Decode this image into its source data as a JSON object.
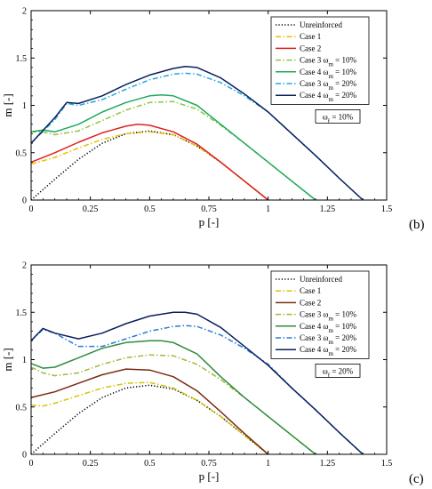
{
  "chart_data": [
    {
      "type": "line",
      "panel_tag": "(b)",
      "xlabel": "p [-]",
      "ylabel": "m [-]",
      "xlim": [
        0,
        1.5
      ],
      "ylim": [
        0,
        2
      ],
      "xticks": [
        "0",
        "0.25",
        "0.5",
        "0.75",
        "1",
        "1.25",
        "1.5"
      ],
      "yticks": [
        "0",
        "0.5",
        "1",
        "1.5",
        "2"
      ],
      "legend_position": "top-right",
      "annotation": "ω_f = 10%",
      "series": [
        {
          "name": "Unreinforced",
          "color": "#000000",
          "dash": "dotted",
          "x": [
            0,
            0.1,
            0.2,
            0.3,
            0.4,
            0.5,
            0.6,
            0.7,
            0.8,
            0.9,
            1.0
          ],
          "y": [
            0,
            0.22,
            0.43,
            0.6,
            0.7,
            0.73,
            0.69,
            0.57,
            0.4,
            0.2,
            0
          ]
        },
        {
          "name": "Case 1",
          "color": "#E8C000",
          "dash": "dashdot",
          "x": [
            0,
            0.1,
            0.2,
            0.3,
            0.4,
            0.5,
            0.6,
            0.7,
            0.8,
            0.9,
            1.0
          ],
          "y": [
            0.38,
            0.45,
            0.55,
            0.64,
            0.7,
            0.72,
            0.69,
            0.57,
            0.4,
            0.2,
            0
          ]
        },
        {
          "name": "Case 2",
          "color": "#E02020",
          "dash": "solid",
          "x": [
            0,
            0.1,
            0.2,
            0.3,
            0.4,
            0.45,
            0.5,
            0.6,
            0.7,
            0.8,
            0.9,
            1.0
          ],
          "y": [
            0.4,
            0.5,
            0.61,
            0.71,
            0.78,
            0.8,
            0.79,
            0.72,
            0.59,
            0.4,
            0.2,
            0
          ]
        },
        {
          "name": "Case 3 ω_m = 10%",
          "color": "#8CC63F",
          "dash": "dashdot",
          "x": [
            0,
            0.05,
            0.1,
            0.2,
            0.3,
            0.4,
            0.5,
            0.6,
            0.7,
            0.8,
            0.9,
            1.0,
            1.1,
            1.2
          ],
          "y": [
            0.72,
            0.72,
            0.69,
            0.73,
            0.84,
            0.95,
            1.03,
            1.04,
            0.96,
            0.79,
            0.6,
            0.4,
            0.2,
            0
          ]
        },
        {
          "name": "Case 4 ω_m = 10%",
          "color": "#1EAA5A",
          "dash": "solid",
          "x": [
            0,
            0.05,
            0.1,
            0.2,
            0.3,
            0.4,
            0.5,
            0.55,
            0.6,
            0.7,
            0.8,
            0.9,
            1.0,
            1.1,
            1.2
          ],
          "y": [
            0.72,
            0.74,
            0.72,
            0.8,
            0.93,
            1.03,
            1.1,
            1.11,
            1.1,
            1.0,
            0.8,
            0.6,
            0.4,
            0.2,
            0
          ]
        },
        {
          "name": "Case 3 ω_m = 20%",
          "color": "#22AADD",
          "dash": "dashdot",
          "x": [
            0,
            0.1,
            0.15,
            0.2,
            0.3,
            0.4,
            0.5,
            0.6,
            0.65,
            0.7,
            0.8,
            0.9,
            1.0,
            1.1,
            1.2,
            1.3,
            1.4
          ],
          "y": [
            0.6,
            0.85,
            1.02,
            1.0,
            1.06,
            1.17,
            1.27,
            1.33,
            1.34,
            1.33,
            1.24,
            1.1,
            0.93,
            0.7,
            0.47,
            0.23,
            0
          ]
        },
        {
          "name": "Case 4 ω_m = 20%",
          "color": "#0A1F5C",
          "dash": "solid",
          "x": [
            0,
            0.1,
            0.15,
            0.2,
            0.3,
            0.4,
            0.5,
            0.6,
            0.65,
            0.7,
            0.8,
            0.9,
            1.0,
            1.1,
            1.2,
            1.3,
            1.4
          ],
          "y": [
            0.6,
            0.87,
            1.03,
            1.02,
            1.1,
            1.22,
            1.32,
            1.39,
            1.41,
            1.4,
            1.29,
            1.12,
            0.93,
            0.7,
            0.47,
            0.23,
            0
          ]
        }
      ]
    },
    {
      "type": "line",
      "panel_tag": "(c)",
      "xlabel": "p [-]",
      "ylabel": "m [-]",
      "xlim": [
        0,
        1.5
      ],
      "ylim": [
        0,
        2
      ],
      "xticks": [
        "0",
        "0.25",
        "0.5",
        "0.75",
        "1",
        "1.25",
        "1.5"
      ],
      "yticks": [
        "0",
        "0.5",
        "1",
        "1.5",
        "2"
      ],
      "legend_position": "top-right",
      "annotation": "ω_f = 20%",
      "series": [
        {
          "name": "Unreinforced",
          "color": "#000000",
          "dash": "dotted",
          "x": [
            0,
            0.1,
            0.2,
            0.3,
            0.4,
            0.5,
            0.6,
            0.7,
            0.8,
            0.9,
            1.0
          ],
          "y": [
            0,
            0.22,
            0.43,
            0.6,
            0.7,
            0.73,
            0.69,
            0.57,
            0.4,
            0.2,
            0
          ]
        },
        {
          "name": "Case 1",
          "color": "#D4C400",
          "dash": "dashdot",
          "x": [
            0,
            0.05,
            0.1,
            0.2,
            0.3,
            0.4,
            0.5,
            0.6,
            0.7,
            0.8,
            0.9,
            1.0
          ],
          "y": [
            0.52,
            0.51,
            0.54,
            0.62,
            0.7,
            0.75,
            0.76,
            0.7,
            0.57,
            0.4,
            0.2,
            0
          ]
        },
        {
          "name": "Case 2",
          "color": "#7A2A10",
          "dash": "solid",
          "x": [
            0,
            0.1,
            0.2,
            0.3,
            0.4,
            0.5,
            0.6,
            0.7,
            0.8,
            0.9,
            1.0
          ],
          "y": [
            0.6,
            0.66,
            0.75,
            0.84,
            0.9,
            0.89,
            0.82,
            0.67,
            0.45,
            0.22,
            0
          ]
        },
        {
          "name": "Case 3 ω_m = 10%",
          "color": "#A2B838",
          "dash": "dashdot",
          "x": [
            0,
            0.05,
            0.1,
            0.2,
            0.3,
            0.4,
            0.5,
            0.6,
            0.7,
            0.8,
            0.9,
            1.0,
            1.1,
            1.2
          ],
          "y": [
            0.92,
            0.86,
            0.83,
            0.86,
            0.95,
            1.02,
            1.05,
            1.04,
            0.95,
            0.79,
            0.6,
            0.4,
            0.2,
            0
          ]
        },
        {
          "name": "Case 4 ω_m = 10%",
          "color": "#2E8B3E",
          "dash": "solid",
          "x": [
            0,
            0.05,
            0.1,
            0.2,
            0.3,
            0.4,
            0.5,
            0.55,
            0.6,
            0.7,
            0.8,
            0.9,
            1.0,
            1.1,
            1.2
          ],
          "y": [
            0.96,
            0.91,
            0.92,
            1.02,
            1.12,
            1.18,
            1.2,
            1.2,
            1.18,
            1.06,
            0.82,
            0.6,
            0.4,
            0.2,
            0
          ]
        },
        {
          "name": "Case 3 ω_m = 20%",
          "color": "#2A7BD6",
          "dash": "dashdot",
          "x": [
            0,
            0.05,
            0.1,
            0.2,
            0.3,
            0.4,
            0.5,
            0.6,
            0.65,
            0.7,
            0.8,
            0.9,
            1.0,
            1.1,
            1.2,
            1.3,
            1.4
          ],
          "y": [
            1.2,
            1.32,
            1.28,
            1.14,
            1.14,
            1.22,
            1.3,
            1.35,
            1.36,
            1.35,
            1.26,
            1.12,
            0.95,
            0.7,
            0.47,
            0.23,
            0
          ]
        },
        {
          "name": "Case 4 ω_m = 20%",
          "color": "#0A1F5C",
          "dash": "solid",
          "x": [
            0,
            0.05,
            0.1,
            0.2,
            0.3,
            0.4,
            0.5,
            0.6,
            0.65,
            0.7,
            0.8,
            0.9,
            1.0,
            1.1,
            1.2,
            1.3,
            1.4
          ],
          "y": [
            1.2,
            1.33,
            1.28,
            1.22,
            1.28,
            1.38,
            1.46,
            1.5,
            1.5,
            1.48,
            1.34,
            1.14,
            0.94,
            0.7,
            0.47,
            0.23,
            0
          ]
        }
      ]
    }
  ]
}
